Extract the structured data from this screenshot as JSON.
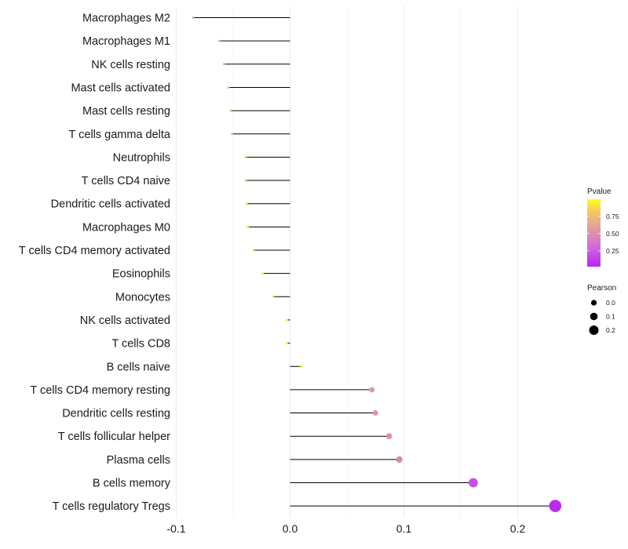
{
  "chart_data": {
    "type": "lollipop",
    "categories": [
      "Macrophages M2",
      "Macrophages M1",
      "NK cells resting",
      "Mast cells activated",
      "Mast cells resting",
      "T cells gamma delta",
      "Neutrophils",
      "T cells CD4 naive",
      "Dendritic cells activated",
      "Macrophages M0",
      "T cells CD4 memory activated",
      "Eosinophils",
      "Monocytes",
      "NK cells activated",
      "T cells CD8",
      "B cells naive",
      "T cells CD4 memory resting",
      "Dendritic cells resting",
      "T cells follicular helper",
      "Plasma cells",
      "B cells memory",
      "T cells regulatory  Tregs"
    ],
    "pearson": [
      -0.085,
      -0.062,
      -0.058,
      -0.054,
      -0.052,
      -0.051,
      -0.039,
      -0.039,
      -0.038,
      -0.037,
      -0.032,
      -0.024,
      -0.015,
      -0.003,
      -0.003,
      0.01,
      0.072,
      0.075,
      0.087,
      0.096,
      0.161,
      0.233
    ],
    "pvalue": [
      0.62,
      0.66,
      0.7,
      0.72,
      0.74,
      0.75,
      0.83,
      0.83,
      0.84,
      0.84,
      0.87,
      0.91,
      0.94,
      0.99,
      0.99,
      0.96,
      0.55,
      0.54,
      0.49,
      0.45,
      0.18,
      0.04
    ],
    "xlim": [
      -0.1,
      0.24
    ],
    "xticks": [
      -0.1,
      0.0,
      0.1,
      0.2
    ],
    "xtick_labels": [
      "-0.1",
      "0.0",
      "0.1",
      "0.2"
    ],
    "xlabel": "",
    "ylabel": "",
    "grid": true,
    "legend": {
      "color": {
        "title": "Pvalue",
        "range": [
          0.02,
          1.0
        ],
        "ticks": [
          0.75,
          0.5,
          0.25
        ],
        "tick_labels": [
          "0.75",
          "0.50",
          "0.25"
        ],
        "low_color": "#c040f0",
        "high_color": "#ffff1a"
      },
      "size": {
        "title": "Pearson",
        "values": [
          0.0,
          0.1,
          0.2
        ],
        "labels": [
          "0.0",
          "0.1",
          "0.2"
        ],
        "color": "#000000"
      }
    }
  }
}
